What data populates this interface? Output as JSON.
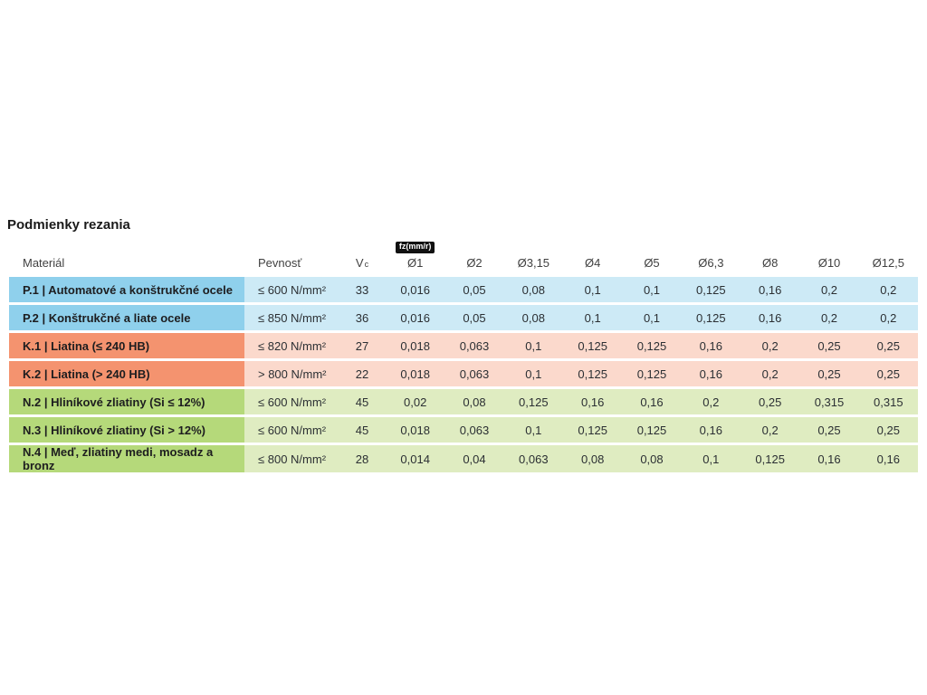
{
  "page": {
    "title": "Podmienky rezania"
  },
  "table": {
    "headers": {
      "material": "Materiál",
      "strength": "Pevnosť",
      "vc_main": "V",
      "vc_sub": "c",
      "fz_badge": "fz(mm/r)",
      "diameters": [
        "Ø1",
        "Ø2",
        "Ø3,15",
        "Ø4",
        "Ø5",
        "Ø6,3",
        "Ø8",
        "Ø10",
        "Ø12,5"
      ]
    },
    "rows": [
      {
        "group": "P",
        "material": "P.1 | Automatové a konštrukčné ocele",
        "strength": "≤ 600 N/mm²",
        "vc": "33",
        "fz": [
          "0,016",
          "0,05",
          "0,08",
          "0,1",
          "0,1",
          "0,125",
          "0,16",
          "0,2",
          "0,2"
        ]
      },
      {
        "group": "P",
        "material": "P.2 | Konštrukčné a liate ocele",
        "strength": "≤ 850 N/mm²",
        "vc": "36",
        "fz": [
          "0,016",
          "0,05",
          "0,08",
          "0,1",
          "0,1",
          "0,125",
          "0,16",
          "0,2",
          "0,2"
        ]
      },
      {
        "group": "K",
        "material": "K.1 | Liatina (≤ 240 HB)",
        "strength": "≤ 820 N/mm²",
        "vc": "27",
        "fz": [
          "0,018",
          "0,063",
          "0,1",
          "0,125",
          "0,125",
          "0,16",
          "0,2",
          "0,25",
          "0,25"
        ]
      },
      {
        "group": "K",
        "material": "K.2 | Liatina (> 240 HB)",
        "strength": "> 800 N/mm²",
        "vc": "22",
        "fz": [
          "0,018",
          "0,063",
          "0,1",
          "0,125",
          "0,125",
          "0,16",
          "0,2",
          "0,25",
          "0,25"
        ]
      },
      {
        "group": "N",
        "material": "N.2 | Hliníkové zliatiny (Si ≤ 12%)",
        "strength": "≤ 600 N/mm²",
        "vc": "45",
        "fz": [
          "0,02",
          "0,08",
          "0,125",
          "0,16",
          "0,16",
          "0,2",
          "0,25",
          "0,315",
          "0,315"
        ]
      },
      {
        "group": "N",
        "material": "N.3 | Hliníkové zliatiny (Si > 12%)",
        "strength": "≤ 600 N/mm²",
        "vc": "45",
        "fz": [
          "0,018",
          "0,063",
          "0,1",
          "0,125",
          "0,125",
          "0,16",
          "0,2",
          "0,25",
          "0,25"
        ]
      },
      {
        "group": "N",
        "material": "N.4 | Meď, zliatiny medi, mosadz a bronz",
        "strength": "≤ 800 N/mm²",
        "vc": "28",
        "fz": [
          "0,014",
          "0,04",
          "0,063",
          "0,08",
          "0,08",
          "0,1",
          "0,125",
          "0,16",
          "0,16"
        ]
      }
    ],
    "colors": {
      "steel_dark": "#8fd0ec",
      "steel_light": "#cdeaf6",
      "cast_iron_dark": "#f4936f",
      "cast_iron_light": "#fbd9cc",
      "nonferrous_dark": "#b5d97a",
      "nonferrous_light": "#dfecc1",
      "badge_bg": "#111111",
      "badge_text": "#ffffff"
    }
  }
}
